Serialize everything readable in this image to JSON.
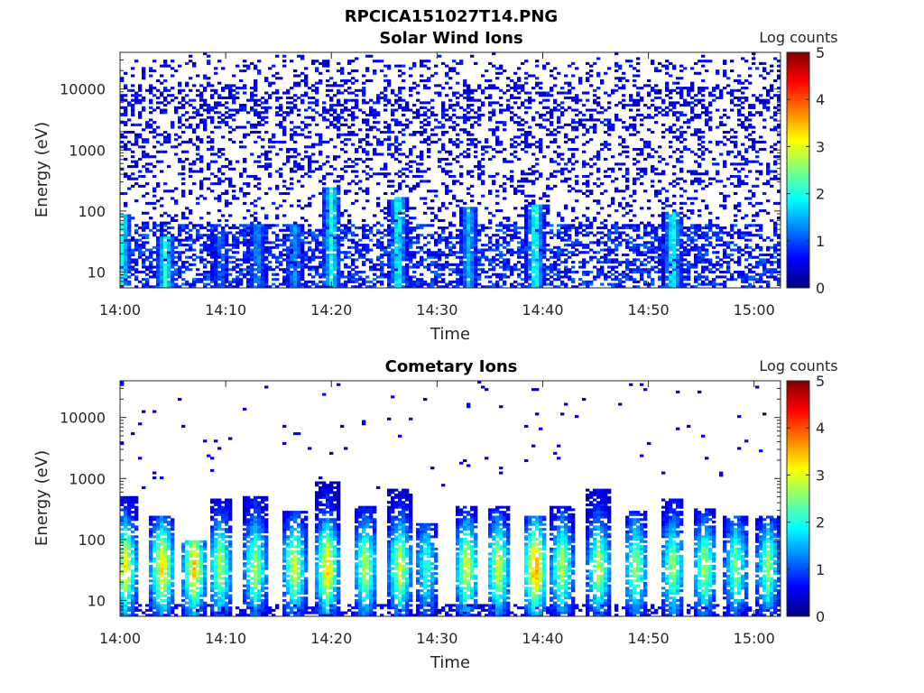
{
  "figure_title": "RPCICA151027T14.PNG",
  "colormap": [
    "#00007f",
    "#0000ff",
    "#007fff",
    "#00ffff",
    "#7fff7f",
    "#ffff00",
    "#ff7f00",
    "#ff0000",
    "#7f0000"
  ],
  "chart_data": [
    {
      "type": "heatmap",
      "title": "Solar Wind Ions",
      "xlabel": "Time",
      "ylabel": "Energy (eV)",
      "colorbar_label": "Log counts",
      "x_ticks": [
        "14:00",
        "14:10",
        "14:20",
        "14:30",
        "14:40",
        "14:50",
        "15:00"
      ],
      "x_tick_minutes": [
        0,
        10,
        20,
        30,
        40,
        50,
        60
      ],
      "x_range_minutes": [
        0,
        62.5
      ],
      "y_scale": "log",
      "y_ticks": [
        "10",
        "100",
        "1000",
        "10000"
      ],
      "y_tick_values": [
        10,
        100,
        1000,
        10000
      ],
      "y_range": [
        5.5,
        40000
      ],
      "c_ticks": [
        "0",
        "1",
        "2",
        "3",
        "4",
        "5"
      ],
      "c_range": [
        0,
        5
      ],
      "features": {
        "background": "sparse noise at 0-1 log counts across all energies",
        "low_energy_band_eV": [
          5.5,
          60
        ],
        "low_energy_level": 1.0,
        "spikes": [
          {
            "minute": 0.2,
            "emax": 90,
            "peak": 2.0
          },
          {
            "minute": 4.3,
            "emax": 40,
            "peak": 2.1
          },
          {
            "minute": 9.5,
            "emax": 45,
            "peak": 1.2
          },
          {
            "minute": 13.0,
            "emax": 60,
            "peak": 1.4
          },
          {
            "minute": 16.5,
            "emax": 60,
            "peak": 1.4
          },
          {
            "minute": 20.0,
            "emax": 250,
            "peak": 2.0
          },
          {
            "minute": 26.3,
            "emax": 170,
            "peak": 2.0
          },
          {
            "minute": 33.0,
            "emax": 120,
            "peak": 1.6
          },
          {
            "minute": 39.3,
            "emax": 130,
            "peak": 2.1
          },
          {
            "minute": 52.3,
            "emax": 100,
            "peak": 2.0
          }
        ]
      }
    },
    {
      "type": "heatmap",
      "title": "Cometary Ions",
      "xlabel": "Time",
      "ylabel": "Energy (eV)",
      "colorbar_label": "Log counts",
      "x_ticks": [
        "14:00",
        "14:10",
        "14:20",
        "14:30",
        "14:40",
        "14:50",
        "15:00"
      ],
      "x_tick_minutes": [
        0,
        10,
        20,
        30,
        40,
        50,
        60
      ],
      "x_range_minutes": [
        0,
        62.5
      ],
      "y_scale": "log",
      "y_ticks": [
        "10",
        "100",
        "1000",
        "10000"
      ],
      "y_tick_values": [
        10,
        100,
        1000,
        10000
      ],
      "y_range": [
        5.5,
        40000
      ],
      "c_ticks": [
        "0",
        "1",
        "2",
        "3",
        "4",
        "5"
      ],
      "c_range": [
        0,
        5
      ],
      "features": {
        "background": "sparse scattered counts above 1000 eV",
        "bursts": [
          {
            "minute": 0.5,
            "emax": 500,
            "peak": 2.8
          },
          {
            "minute": 4.0,
            "emax": 250,
            "peak": 3.0
          },
          {
            "minute": 7.0,
            "emax": 100,
            "peak": 3.0
          },
          {
            "minute": 9.5,
            "emax": 450,
            "peak": 2.4
          },
          {
            "minute": 12.8,
            "emax": 500,
            "peak": 2.4
          },
          {
            "minute": 16.5,
            "emax": 300,
            "peak": 2.6
          },
          {
            "minute": 19.6,
            "emax": 900,
            "peak": 3.0
          },
          {
            "minute": 23.2,
            "emax": 350,
            "peak": 2.5
          },
          {
            "minute": 26.5,
            "emax": 650,
            "peak": 2.6
          },
          {
            "minute": 29.0,
            "emax": 180,
            "peak": 1.8
          },
          {
            "minute": 32.8,
            "emax": 350,
            "peak": 2.7
          },
          {
            "minute": 35.8,
            "emax": 350,
            "peak": 2.6
          },
          {
            "minute": 39.3,
            "emax": 250,
            "peak": 3.4
          },
          {
            "minute": 41.8,
            "emax": 350,
            "peak": 2.4
          },
          {
            "minute": 45.3,
            "emax": 700,
            "peak": 2.5
          },
          {
            "minute": 48.8,
            "emax": 300,
            "peak": 2.3
          },
          {
            "minute": 52.3,
            "emax": 450,
            "peak": 2.3
          },
          {
            "minute": 55.3,
            "emax": 320,
            "peak": 2.4
          },
          {
            "minute": 58.3,
            "emax": 250,
            "peak": 2.2
          },
          {
            "minute": 61.3,
            "emax": 250,
            "peak": 2.2
          }
        ]
      }
    }
  ]
}
